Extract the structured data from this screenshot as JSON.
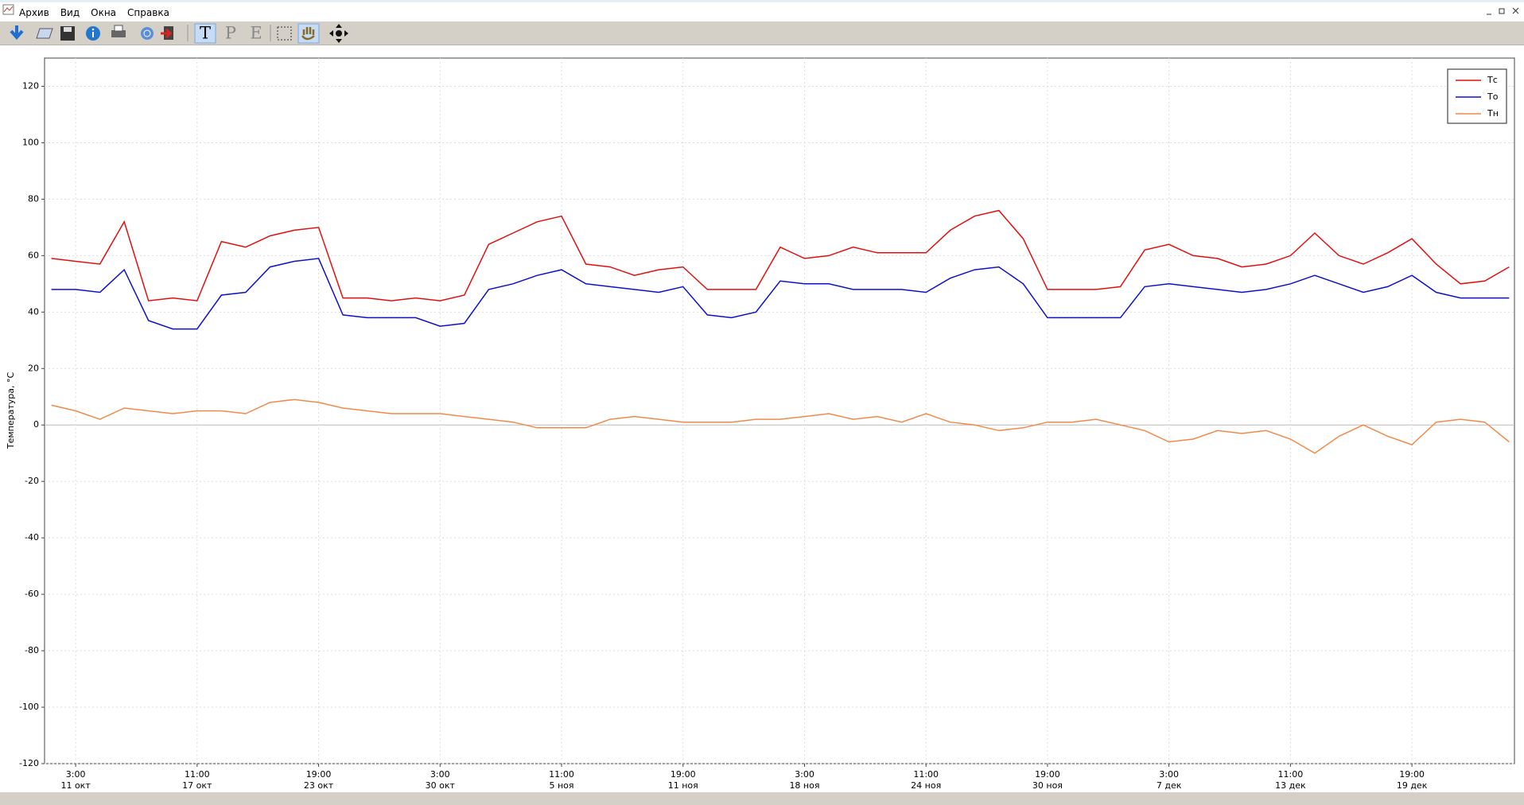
{
  "menu": [
    "Архив",
    "Вид",
    "Окна",
    "Справка"
  ],
  "toolbar": {
    "text_tools": [
      "T",
      "P",
      "E"
    ]
  },
  "chart_data": {
    "type": "line",
    "y_label": "Температура, °C",
    "categories": [
      null,
      "3:00",
      null,
      null,
      null,
      null,
      "11:00",
      null,
      null,
      null,
      null,
      "19:00",
      null,
      null,
      null,
      null,
      "3:00",
      null,
      null,
      null,
      null,
      "11:00",
      null,
      null,
      null,
      null,
      "19:00",
      null,
      null,
      null,
      null,
      "3:00",
      null,
      null,
      null,
      null,
      "11:00",
      null,
      null,
      null,
      null,
      "19:00",
      null,
      null,
      null,
      null,
      "3:00",
      null,
      null,
      null,
      null,
      "11:00",
      null,
      null,
      null,
      null,
      "19:00",
      null,
      null,
      null,
      null
    ],
    "category_dates": [
      null,
      "11 окт",
      null,
      null,
      null,
      null,
      "17 окт",
      null,
      null,
      null,
      null,
      "23 окт",
      null,
      null,
      null,
      null,
      "30 окт",
      null,
      null,
      null,
      null,
      "5 ноя",
      null,
      null,
      null,
      null,
      "11 ноя",
      null,
      null,
      null,
      null,
      "18 ноя",
      null,
      null,
      null,
      null,
      "24 ноя",
      null,
      null,
      null,
      null,
      "30 ноя",
      null,
      null,
      null,
      null,
      "7 дек",
      null,
      null,
      null,
      null,
      "13 дек",
      null,
      null,
      null,
      null,
      "19 дек",
      null,
      null,
      null,
      null
    ],
    "series": [
      {
        "name": "Тс",
        "color": "#e01010",
        "values": [
          59,
          58,
          57,
          72,
          44,
          45,
          44,
          65,
          63,
          67,
          69,
          70,
          45,
          45,
          44,
          45,
          44,
          46,
          64,
          68,
          72,
          74,
          57,
          56,
          53,
          55,
          56,
          48,
          48,
          48,
          63,
          59,
          60,
          63,
          61,
          61,
          61,
          69,
          74,
          76,
          66,
          48,
          48,
          48,
          49,
          62,
          64,
          60,
          59,
          56,
          57,
          60,
          68,
          60,
          57,
          61,
          66,
          57,
          50,
          51,
          56
        ]
      },
      {
        "name": "То",
        "color": "#1010c8",
        "values": [
          48,
          48,
          47,
          55,
          37,
          34,
          34,
          46,
          47,
          56,
          58,
          59,
          39,
          38,
          38,
          38,
          35,
          36,
          48,
          50,
          53,
          55,
          50,
          49,
          48,
          47,
          49,
          39,
          38,
          40,
          51,
          50,
          50,
          48,
          48,
          48,
          47,
          52,
          55,
          56,
          50,
          38,
          38,
          38,
          38,
          49,
          50,
          49,
          48,
          47,
          48,
          50,
          53,
          50,
          47,
          49,
          53,
          47,
          45,
          45,
          45
        ]
      },
      {
        "name": "Тн",
        "color": "#f08a4b",
        "values": [
          7,
          5,
          2,
          6,
          5,
          4,
          5,
          5,
          4,
          8,
          9,
          8,
          6,
          5,
          4,
          4,
          4,
          3,
          2,
          1,
          -1,
          -1,
          -1,
          2,
          3,
          2,
          1,
          1,
          1,
          2,
          2,
          3,
          4,
          2,
          3,
          1,
          4,
          1,
          0,
          -2,
          -1,
          1,
          1,
          2,
          0,
          -2,
          -6,
          -5,
          -2,
          -3,
          -2,
          -5,
          -10,
          -4,
          0,
          -4,
          -7,
          1,
          2,
          1,
          -6
        ]
      }
    ],
    "ylim": [
      -120,
      130
    ],
    "yticks": [
      -120,
      -100,
      -80,
      -60,
      -40,
      -20,
      0,
      20,
      40,
      60,
      80,
      100,
      120
    ],
    "grid": true,
    "legend": "top-right"
  }
}
